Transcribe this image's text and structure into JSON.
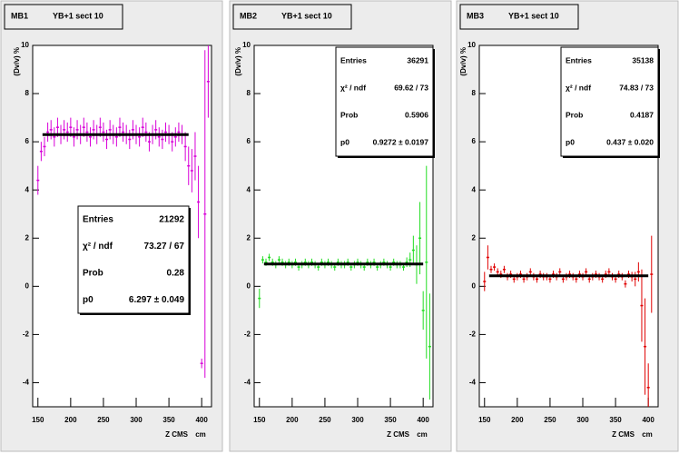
{
  "chart_data": [
    {
      "type": "errorbar",
      "title": "MB1",
      "subtitle": "YB+1 sect 10",
      "y_label": "(Dv/v) %",
      "x_label": "Z CMS",
      "x_unit": "cm",
      "color": "#d800d8",
      "xlim": [
        142,
        415
      ],
      "ylim": [
        -5,
        10
      ],
      "xticks": [
        150,
        200,
        250,
        300,
        350,
        400
      ],
      "yticks": [
        -4,
        -2,
        0,
        2,
        4,
        6,
        8,
        10
      ],
      "x": [
        150,
        155,
        160,
        165,
        170,
        175,
        180,
        185,
        190,
        195,
        200,
        205,
        210,
        215,
        220,
        225,
        230,
        235,
        240,
        245,
        250,
        255,
        260,
        265,
        270,
        275,
        280,
        285,
        290,
        295,
        300,
        305,
        310,
        315,
        320,
        325,
        330,
        335,
        340,
        345,
        350,
        355,
        360,
        365,
        370,
        375,
        380,
        385,
        390,
        395,
        400,
        405,
        410
      ],
      "values": [
        4.4,
        5.6,
        5.8,
        6.4,
        6.5,
        6.2,
        6.6,
        6.3,
        6.5,
        6.4,
        6.6,
        6.2,
        6.5,
        6.3,
        6.6,
        6.4,
        6.2,
        6.5,
        6.3,
        6.6,
        6.4,
        6.1,
        6.5,
        6.3,
        6.2,
        6.6,
        6.4,
        6.3,
        6.1,
        6.5,
        6.3,
        6.2,
        6.6,
        6.4,
        6.0,
        6.3,
        6.5,
        6.2,
        6.1,
        6.4,
        6.3,
        6.0,
        6.2,
        6.4,
        6.3,
        5.8,
        5.0,
        4.8,
        5.4,
        3.5,
        -3.2,
        3.0,
        8.5
      ],
      "errors": [
        0.6,
        0.4,
        0.4,
        0.4,
        0.4,
        0.4,
        0.4,
        0.4,
        0.4,
        0.4,
        0.4,
        0.4,
        0.4,
        0.4,
        0.4,
        0.4,
        0.4,
        0.4,
        0.4,
        0.4,
        0.4,
        0.4,
        0.4,
        0.4,
        0.4,
        0.4,
        0.4,
        0.4,
        0.4,
        0.4,
        0.4,
        0.4,
        0.4,
        0.4,
        0.4,
        0.4,
        0.4,
        0.4,
        0.4,
        0.4,
        0.4,
        0.4,
        0.4,
        0.4,
        0.4,
        0.6,
        0.8,
        0.9,
        1.0,
        1.5,
        0.2,
        6.8,
        1.5
      ],
      "fit_range": [
        157,
        380
      ],
      "stats_corner": "lower right",
      "stats": [
        {
          "label": "Entries",
          "value": 21292
        },
        {
          "label": "χ² / ndf",
          "text": "73.27 / 67"
        },
        {
          "label": "Prob",
          "value": 0.28
        },
        {
          "label": "p0",
          "value": 6.297,
          "error": 0.049,
          "text": "6.297 ± 0.049"
        }
      ]
    },
    {
      "type": "errorbar",
      "title": "MB2",
      "subtitle": "YB+1 sect 10",
      "y_label": "(Dv/v) %",
      "x_label": "Z CMS",
      "x_unit": "cm",
      "color": "#22dd22",
      "xlim": [
        142,
        415
      ],
      "ylim": [
        -5,
        10
      ],
      "xticks": [
        150,
        200,
        250,
        300,
        350,
        400
      ],
      "yticks": [
        -4,
        -2,
        0,
        2,
        4,
        6,
        8,
        10
      ],
      "x": [
        150,
        155,
        160,
        165,
        170,
        175,
        180,
        185,
        190,
        195,
        200,
        205,
        210,
        215,
        220,
        225,
        230,
        235,
        240,
        245,
        250,
        255,
        260,
        265,
        270,
        275,
        280,
        285,
        290,
        295,
        300,
        305,
        310,
        315,
        320,
        325,
        330,
        335,
        340,
        345,
        350,
        355,
        360,
        365,
        370,
        375,
        380,
        385,
        390,
        395,
        400,
        405,
        410
      ],
      "values": [
        -0.5,
        1.1,
        1.0,
        1.2,
        1.0,
        0.9,
        1.1,
        1.0,
        0.9,
        1.0,
        0.9,
        1.0,
        0.8,
        0.9,
        1.0,
        0.9,
        1.0,
        0.9,
        0.8,
        1.0,
        0.9,
        1.0,
        0.9,
        0.8,
        1.0,
        0.9,
        0.9,
        1.0,
        0.8,
        0.9,
        1.0,
        0.9,
        0.8,
        1.0,
        0.9,
        1.0,
        0.8,
        0.9,
        1.0,
        0.9,
        0.8,
        1.0,
        0.9,
        0.9,
        0.8,
        1.0,
        1.1,
        1.5,
        0.9,
        2.0,
        -1.0,
        1.0,
        -2.5
      ],
      "errors": [
        0.4,
        0.15,
        0.15,
        0.15,
        0.15,
        0.15,
        0.15,
        0.15,
        0.15,
        0.15,
        0.15,
        0.15,
        0.15,
        0.15,
        0.15,
        0.15,
        0.15,
        0.15,
        0.15,
        0.15,
        0.15,
        0.15,
        0.15,
        0.15,
        0.15,
        0.15,
        0.15,
        0.15,
        0.15,
        0.15,
        0.15,
        0.15,
        0.15,
        0.15,
        0.15,
        0.15,
        0.15,
        0.15,
        0.15,
        0.15,
        0.15,
        0.15,
        0.15,
        0.15,
        0.15,
        0.2,
        0.3,
        0.6,
        0.8,
        1.5,
        0.8,
        4.0,
        2.2
      ],
      "fit_range": [
        157,
        400
      ],
      "stats_corner": "upper right",
      "stats": [
        {
          "label": "Entries",
          "value": 36291
        },
        {
          "label": "χ² / ndf",
          "text": "69.62 / 73"
        },
        {
          "label": "Prob",
          "value": 0.5906
        },
        {
          "label": "p0",
          "value": 0.9272,
          "error": 0.0197,
          "text": "0.9272 ± 0.0197"
        }
      ]
    },
    {
      "type": "errorbar",
      "title": "MB3",
      "subtitle": "YB+1 sect 10",
      "y_label": "(Dv/v) %",
      "x_label": "Z CMS",
      "x_unit": "cm",
      "color": "#e00000",
      "xlim": [
        142,
        415
      ],
      "ylim": [
        -5,
        10
      ],
      "xticks": [
        150,
        200,
        250,
        300,
        350,
        400
      ],
      "yticks": [
        -4,
        -2,
        0,
        2,
        4,
        6,
        8,
        10
      ],
      "x": [
        150,
        155,
        160,
        165,
        170,
        175,
        180,
        185,
        190,
        195,
        200,
        205,
        210,
        215,
        220,
        225,
        230,
        235,
        240,
        245,
        250,
        255,
        260,
        265,
        270,
        275,
        280,
        285,
        290,
        295,
        300,
        305,
        310,
        315,
        320,
        325,
        330,
        335,
        340,
        345,
        350,
        355,
        360,
        365,
        370,
        375,
        380,
        385,
        390,
        395,
        400,
        405,
        410
      ],
      "values": [
        0.2,
        1.2,
        0.7,
        0.8,
        0.6,
        0.5,
        0.7,
        0.4,
        0.5,
        0.3,
        0.4,
        0.5,
        0.3,
        0.4,
        0.6,
        0.4,
        0.3,
        0.5,
        0.4,
        0.4,
        0.3,
        0.5,
        0.4,
        0.6,
        0.3,
        0.4,
        0.5,
        0.4,
        0.3,
        0.5,
        0.4,
        0.6,
        0.3,
        0.4,
        0.5,
        0.4,
        0.3,
        0.5,
        0.6,
        0.4,
        0.3,
        0.5,
        0.4,
        0.1,
        0.5,
        0.4,
        0.3,
        0.6,
        -0.8,
        -2.5,
        -4.2,
        0.5,
        null
      ],
      "errors": [
        0.4,
        0.5,
        0.15,
        0.15,
        0.15,
        0.15,
        0.15,
        0.15,
        0.15,
        0.15,
        0.15,
        0.15,
        0.15,
        0.15,
        0.15,
        0.15,
        0.15,
        0.15,
        0.15,
        0.15,
        0.15,
        0.15,
        0.15,
        0.15,
        0.15,
        0.15,
        0.15,
        0.15,
        0.15,
        0.15,
        0.15,
        0.15,
        0.15,
        0.15,
        0.15,
        0.15,
        0.15,
        0.15,
        0.15,
        0.15,
        0.15,
        0.15,
        0.15,
        0.15,
        0.15,
        0.2,
        0.3,
        0.4,
        1.5,
        2.0,
        1.0,
        1.6,
        null
      ],
      "fit_range": [
        157,
        400
      ],
      "stats_corner": "upper right",
      "stats": [
        {
          "label": "Entries",
          "value": 35138
        },
        {
          "label": "χ² / ndf",
          "text": "74.83 / 73"
        },
        {
          "label": "Prob",
          "value": 0.4187
        },
        {
          "label": "p0",
          "value": 0.437,
          "error": 0.02,
          "text": "0.437 ± 0.020"
        }
      ]
    }
  ]
}
